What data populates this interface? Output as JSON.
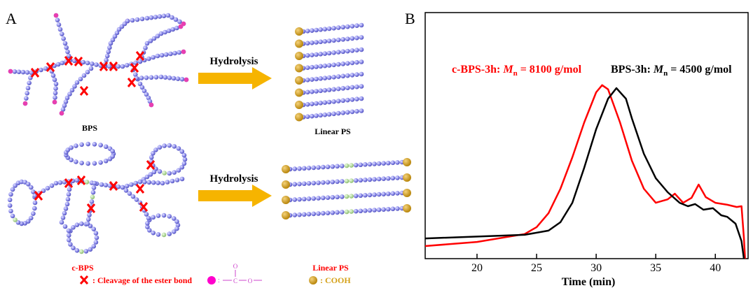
{
  "panel_a": {
    "label": "A",
    "top": {
      "arrow_label": "Hydrolysis",
      "left_label": "BPS",
      "right_label": "Linear PS"
    },
    "bottom": {
      "arrow_label": "Hydrolysis",
      "left_label": "c-BPS",
      "right_label": "Linear PS"
    },
    "legend": {
      "cleavage": ": Cleavage of the ester bond",
      "ester_o_top": "O",
      "ester_c": "C",
      "ester_o": "O",
      "cooh": ": COOH"
    }
  },
  "chart_data": {
    "type": "line",
    "panel_label": "B",
    "xlabel": "Time (min)",
    "xlim": [
      15.65,
      42.75
    ],
    "xticks": [
      20,
      25,
      30,
      35,
      40
    ],
    "ylim": [
      0,
      100
    ],
    "series": [
      {
        "name": "c-BPS-3h:",
        "mn_symbol": "M",
        "mn_subscript": "n",
        "mn_text": "= 8100 g/mol",
        "color": "#ff0000",
        "x": [
          15.65,
          20,
          24,
          25,
          26,
          27,
          28,
          29,
          30,
          30.5,
          31,
          32,
          33,
          34,
          35,
          36,
          36.6,
          37.3,
          38,
          38.6,
          39.2,
          40,
          41,
          41.8,
          42.2,
          42.4,
          42.5
        ],
        "values": [
          5.1,
          6.8,
          10,
          12.8,
          18.5,
          28.4,
          41.2,
          55.4,
          67.6,
          70.5,
          68.8,
          55.4,
          39.8,
          28.4,
          22.7,
          24.1,
          26.4,
          22.7,
          24.7,
          30.1,
          25,
          22.7,
          21.9,
          21,
          21.3,
          8.5,
          0
        ]
      },
      {
        "name": "BPS-3h:",
        "mn_symbol": "M",
        "mn_subscript": "n",
        "mn_text": "= 4500 g/mol",
        "color": "#000000",
        "x": [
          15.65,
          24,
          26,
          27,
          28,
          29,
          30,
          31,
          31.7,
          32.5,
          33,
          34,
          35,
          36,
          37,
          37.7,
          38.3,
          39,
          39.8,
          40.5,
          41,
          41.7,
          42.2,
          42.4
        ],
        "values": [
          8.2,
          9.7,
          11.4,
          14.8,
          22.7,
          37,
          52.6,
          65,
          69.3,
          65,
          57,
          42.6,
          32.7,
          27,
          22.7,
          21.3,
          22.2,
          19.9,
          20.5,
          17.6,
          17,
          14.2,
          7.1,
          0
        ]
      }
    ]
  }
}
